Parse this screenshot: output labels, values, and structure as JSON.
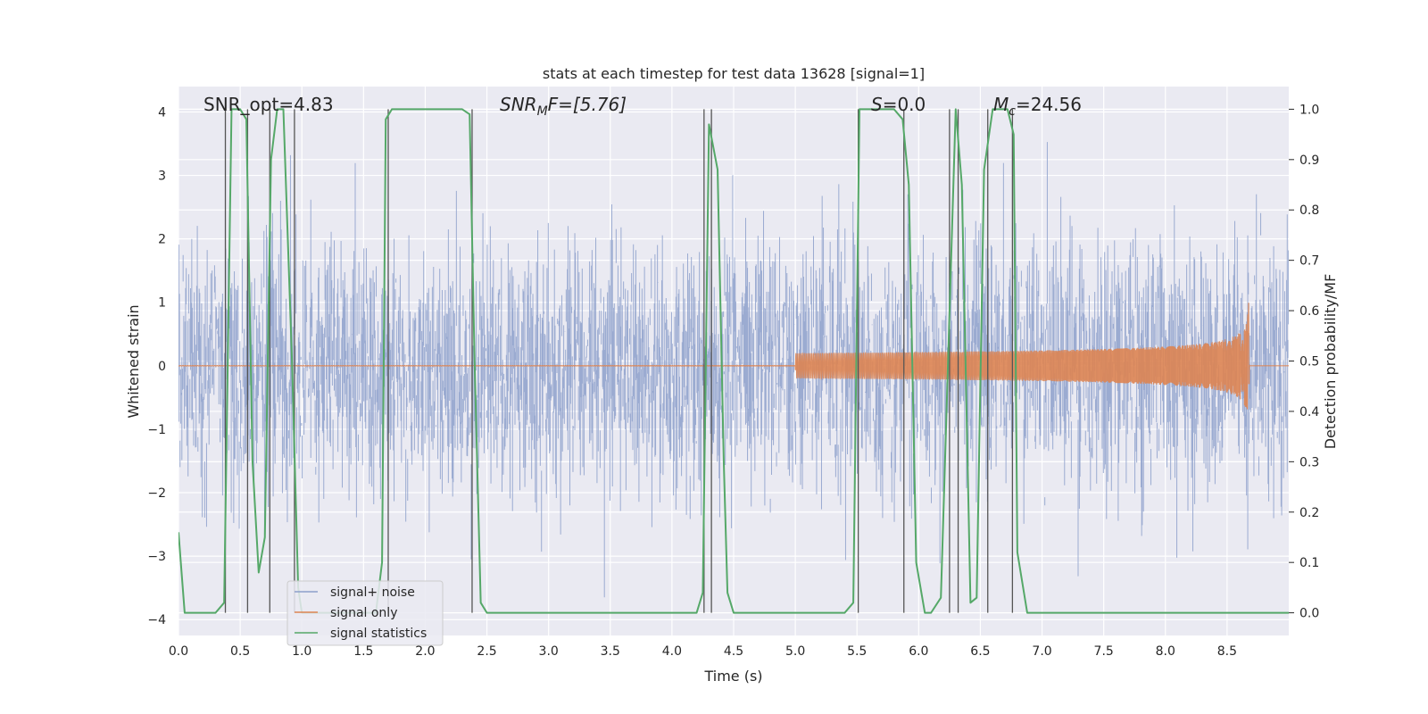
{
  "chart_data": {
    "type": "line",
    "title": "stats at each timestep for test data 13628 [signal=1]",
    "xlabel": "Time (s)",
    "ylabel_left": "Whitened strain",
    "ylabel_right": "Detection probability/MF",
    "xlim": [
      0.0,
      9.0
    ],
    "ylim_left": [
      -4.25,
      4.4
    ],
    "ylim_right": [
      -0.045,
      1.045
    ],
    "x_ticks": [
      "0.0",
      "0.5",
      "1.0",
      "1.5",
      "2.0",
      "2.5",
      "3.0",
      "3.5",
      "4.0",
      "4.5",
      "5.0",
      "5.5",
      "6.0",
      "6.5",
      "7.0",
      "7.5",
      "8.0",
      "8.5"
    ],
    "x_tick_values": [
      0,
      0.5,
      1,
      1.5,
      2,
      2.5,
      3,
      3.5,
      4,
      4.5,
      5,
      5.5,
      6,
      6.5,
      7,
      7.5,
      8,
      8.5
    ],
    "y_left_ticks": [
      "4",
      "3",
      "2",
      "1",
      "0",
      "−1",
      "−2",
      "−3",
      "−4"
    ],
    "y_left_tick_values": [
      4,
      3,
      2,
      1,
      0,
      -1,
      -2,
      -3,
      -4
    ],
    "y_right_ticks": [
      "1.0",
      "0.9",
      "0.8",
      "0.7",
      "0.6",
      "0.5",
      "0.4",
      "0.3",
      "0.2",
      "0.1",
      "0.0"
    ],
    "y_right_tick_values": [
      1.0,
      0.9,
      0.8,
      0.7,
      0.6,
      0.5,
      0.4,
      0.3,
      0.2,
      0.1,
      0.0
    ],
    "grid": true,
    "legend_position": "lower-left",
    "annotations": {
      "snr_opt": "SNR_opt=4.83",
      "snr_mf_base": "SNR",
      "snr_mf_sub": "M",
      "snr_mf_rest": "F=[5.76]",
      "s_var": "S",
      "s_rest": "=0.0",
      "mc_base": "M",
      "mc_sub": "c",
      "mc_rest": "=24.56"
    },
    "series": [
      {
        "name": "signal+ noise",
        "color": "#8da0cb",
        "description_kind": "whitened noisy strain",
        "envelope_sigma": 1.0,
        "range_approx": [
          -3.9,
          3.9
        ]
      },
      {
        "name": "signal only",
        "color": "#dd8452",
        "kind": "chirp",
        "peak_time": 8.68,
        "peak_amplitude": 1.1,
        "start_time": 5.0
      },
      {
        "name": "signal statistics",
        "color": "#55a868",
        "x": [
          0.0,
          0.05,
          0.1,
          0.2,
          0.3,
          0.37,
          0.43,
          0.5,
          0.55,
          0.6,
          0.65,
          0.7,
          0.75,
          0.8,
          0.85,
          0.92,
          0.97,
          1.0,
          1.05,
          1.1,
          1.2,
          1.3,
          1.4,
          1.5,
          1.6,
          1.65,
          1.68,
          1.73,
          1.8,
          1.9,
          2.0,
          2.1,
          2.2,
          2.3,
          2.36,
          2.4,
          2.45,
          2.5,
          2.6,
          2.8,
          3.0,
          3.2,
          3.4,
          3.6,
          3.8,
          4.0,
          4.2,
          4.25,
          4.3,
          4.37,
          4.42,
          4.45,
          4.5,
          4.6,
          4.8,
          5.0,
          5.2,
          5.4,
          5.47,
          5.52,
          5.6,
          5.7,
          5.8,
          5.87,
          5.92,
          5.98,
          6.05,
          6.1,
          6.18,
          6.3,
          6.35,
          6.42,
          6.47,
          6.53,
          6.6,
          6.65,
          6.72,
          6.77,
          6.8,
          6.88,
          7.0,
          7.5,
          8.0,
          8.5,
          9.0
        ],
        "values": [
          0.16,
          0.0,
          0.0,
          0.0,
          0.0,
          0.02,
          1.0,
          1.0,
          0.98,
          0.3,
          0.08,
          0.15,
          0.9,
          1.0,
          1.0,
          0.5,
          0.05,
          0.0,
          0.0,
          0.0,
          0.0,
          0.0,
          0.0,
          0.0,
          0.0,
          0.1,
          0.98,
          1.0,
          1.0,
          1.0,
          1.0,
          1.0,
          1.0,
          1.0,
          0.99,
          0.5,
          0.02,
          0.0,
          0.0,
          0.0,
          0.0,
          0.0,
          0.0,
          0.0,
          0.0,
          0.0,
          0.0,
          0.04,
          0.97,
          0.88,
          0.3,
          0.04,
          0.0,
          0.0,
          0.0,
          0.0,
          0.0,
          0.0,
          0.02,
          1.0,
          1.0,
          1.0,
          1.0,
          0.98,
          0.85,
          0.1,
          0.0,
          0.0,
          0.03,
          1.0,
          0.85,
          0.02,
          0.03,
          0.88,
          1.0,
          1.0,
          1.0,
          0.95,
          0.12,
          0.0,
          0.0,
          0.0,
          0.0,
          0.0,
          0.0
        ]
      }
    ],
    "vertical_markers": [
      0.38,
      0.56,
      0.74,
      0.94,
      1.7,
      2.38,
      4.26,
      4.32,
      5.51,
      5.88,
      6.25,
      6.32,
      6.56,
      6.76
    ]
  }
}
